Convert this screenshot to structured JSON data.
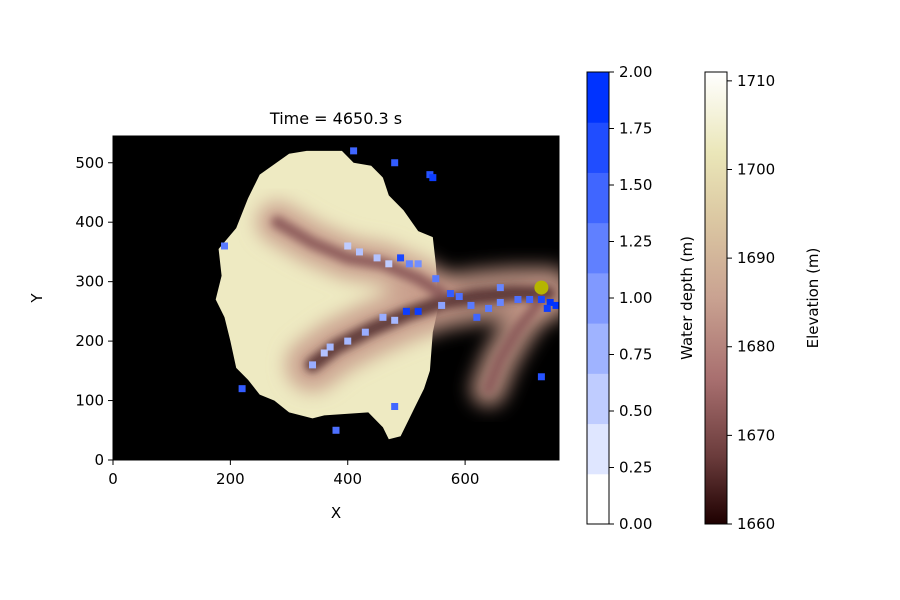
{
  "chart_data": {
    "type": "heatmap",
    "title": "Time = 4650.3 s",
    "xlabel": "X",
    "ylabel": "Y",
    "xlim": [
      0,
      760
    ],
    "ylim": [
      0,
      545
    ],
    "xticks": [
      0,
      200,
      400,
      600
    ],
    "yticks": [
      0,
      100,
      200,
      300,
      400,
      500
    ],
    "grid": false,
    "background_color": "#000000",
    "elevation": {
      "label": "Elevation (m)",
      "range": [
        1660,
        1711
      ],
      "ticks": [
        1660,
        1670,
        1680,
        1690,
        1700,
        1710
      ],
      "colormap": "pink"
    },
    "water_depth": {
      "label": "Water depth (m)",
      "range": [
        0,
        2
      ],
      "ticks": [
        "0.00",
        "0.25",
        "0.50",
        "0.75",
        "1.00",
        "1.25",
        "1.50",
        "1.75",
        "2.00"
      ],
      "levels": 9,
      "color_max": "#0033ff"
    },
    "outlet_point": {
      "x": 730,
      "y": 290,
      "color": "#b5b500"
    },
    "watershed_boundary": [
      [
        300,
        515
      ],
      [
        330,
        520
      ],
      [
        390,
        520
      ],
      [
        410,
        500
      ],
      [
        440,
        495
      ],
      [
        460,
        475
      ],
      [
        470,
        445
      ],
      [
        495,
        420
      ],
      [
        520,
        385
      ],
      [
        545,
        375
      ],
      [
        550,
        330
      ],
      [
        555,
        260
      ],
      [
        545,
        215
      ],
      [
        540,
        150
      ],
      [
        530,
        120
      ],
      [
        515,
        90
      ],
      [
        505,
        70
      ],
      [
        490,
        40
      ],
      [
        470,
        35
      ],
      [
        460,
        55
      ],
      [
        435,
        80
      ],
      [
        360,
        75
      ],
      [
        340,
        70
      ],
      [
        300,
        80
      ],
      [
        275,
        100
      ],
      [
        250,
        110
      ],
      [
        230,
        135
      ],
      [
        210,
        155
      ],
      [
        200,
        200
      ],
      [
        190,
        240
      ],
      [
        175,
        270
      ],
      [
        185,
        310
      ],
      [
        180,
        355
      ],
      [
        210,
        390
      ],
      [
        230,
        440
      ],
      [
        250,
        480
      ]
    ],
    "valley_lines": [
      {
        "name": "main",
        "points": [
          [
            340,
            160
          ],
          [
            380,
            190
          ],
          [
            440,
            220
          ],
          [
            500,
            245
          ],
          [
            560,
            265
          ],
          [
            620,
            275
          ],
          [
            680,
            280
          ],
          [
            740,
            280
          ]
        ],
        "depth": 3
      },
      {
        "name": "north",
        "points": [
          [
            280,
            400
          ],
          [
            340,
            365
          ],
          [
            400,
            340
          ],
          [
            460,
            330
          ],
          [
            520,
            305
          ],
          [
            560,
            280
          ]
        ],
        "depth": 2
      },
      {
        "name": "south",
        "points": [
          [
            640,
            120
          ],
          [
            660,
            170
          ],
          [
            690,
            220
          ],
          [
            730,
            270
          ]
        ],
        "depth": 1.5
      }
    ],
    "water_cells": [
      {
        "x": 410,
        "y": 520,
        "depth": 1.5
      },
      {
        "x": 480,
        "y": 500,
        "depth": 1.6
      },
      {
        "x": 540,
        "y": 480,
        "depth": 1.7
      },
      {
        "x": 545,
        "y": 475,
        "depth": 1.9
      },
      {
        "x": 190,
        "y": 360,
        "depth": 1.3
      },
      {
        "x": 490,
        "y": 340,
        "depth": 1.8
      },
      {
        "x": 505,
        "y": 330,
        "depth": 1.2
      },
      {
        "x": 520,
        "y": 330,
        "depth": 1.1
      },
      {
        "x": 550,
        "y": 305,
        "depth": 1.3
      },
      {
        "x": 575,
        "y": 280,
        "depth": 1.6
      },
      {
        "x": 590,
        "y": 275,
        "depth": 1.4
      },
      {
        "x": 500,
        "y": 250,
        "depth": 1.9
      },
      {
        "x": 520,
        "y": 250,
        "depth": 1.9
      },
      {
        "x": 610,
        "y": 260,
        "depth": 1.3
      },
      {
        "x": 620,
        "y": 240,
        "depth": 1.5
      },
      {
        "x": 640,
        "y": 255,
        "depth": 1.3
      },
      {
        "x": 660,
        "y": 265,
        "depth": 1.2
      },
      {
        "x": 690,
        "y": 270,
        "depth": 1.4
      },
      {
        "x": 710,
        "y": 270,
        "depth": 1.5
      },
      {
        "x": 730,
        "y": 270,
        "depth": 1.8
      },
      {
        "x": 745,
        "y": 265,
        "depth": 2.0
      },
      {
        "x": 755,
        "y": 260,
        "depth": 2.0
      },
      {
        "x": 740,
        "y": 255,
        "depth": 1.9
      },
      {
        "x": 220,
        "y": 120,
        "depth": 1.6
      },
      {
        "x": 480,
        "y": 90,
        "depth": 1.5
      },
      {
        "x": 380,
        "y": 50,
        "depth": 1.4
      },
      {
        "x": 730,
        "y": 140,
        "depth": 1.7
      },
      {
        "x": 660,
        "y": 290,
        "depth": 1.2
      },
      {
        "x": 560,
        "y": 260,
        "depth": 0.9
      },
      {
        "x": 460,
        "y": 240,
        "depth": 0.8
      },
      {
        "x": 430,
        "y": 215,
        "depth": 0.8
      },
      {
        "x": 400,
        "y": 200,
        "depth": 0.7
      },
      {
        "x": 370,
        "y": 190,
        "depth": 0.7
      },
      {
        "x": 340,
        "y": 160,
        "depth": 0.8
      },
      {
        "x": 360,
        "y": 180,
        "depth": 0.6
      },
      {
        "x": 420,
        "y": 350,
        "depth": 0.6
      },
      {
        "x": 450,
        "y": 340,
        "depth": 0.6
      },
      {
        "x": 400,
        "y": 360,
        "depth": 0.5
      },
      {
        "x": 470,
        "y": 330,
        "depth": 0.5
      },
      {
        "x": 480,
        "y": 235,
        "depth": 0.7
      }
    ]
  }
}
